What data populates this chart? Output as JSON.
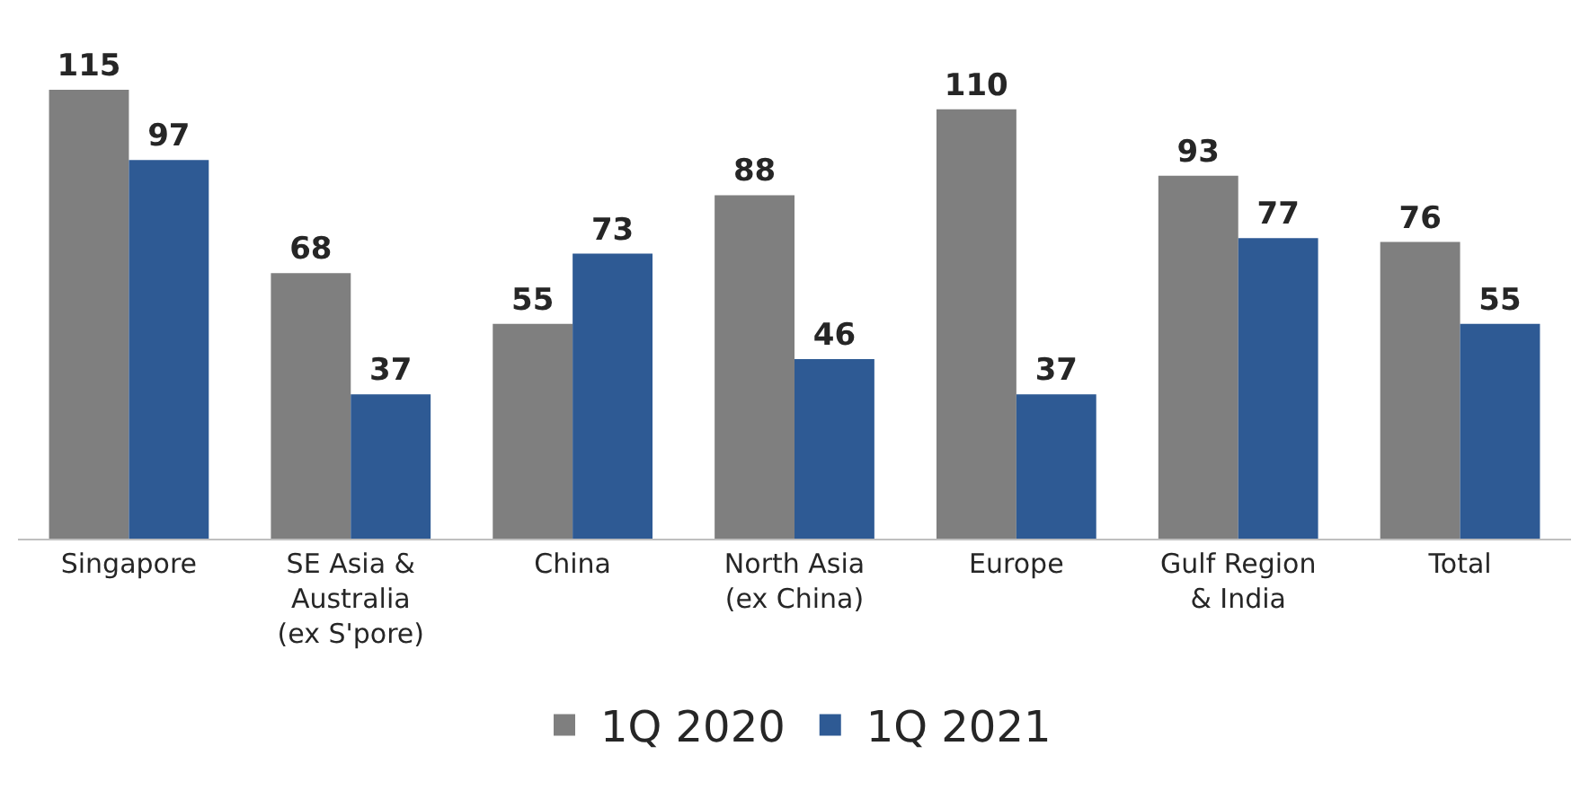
{
  "chart_data": {
    "type": "bar",
    "categories": [
      "Singapore",
      "SE Asia &\nAustralia\n(ex S'pore)",
      "China",
      "North Asia\n(ex China)",
      "Europe",
      "Gulf Region\n& India",
      "Total"
    ],
    "series": [
      {
        "name": "1Q 2020",
        "color": "#7f7f7f",
        "values": [
          115,
          68,
          55,
          88,
          110,
          93,
          76
        ]
      },
      {
        "name": "1Q 2021",
        "color": "#2e5a94",
        "values": [
          97,
          37,
          73,
          46,
          37,
          77,
          55
        ]
      }
    ],
    "data_labels": true,
    "legend": "bottom"
  }
}
